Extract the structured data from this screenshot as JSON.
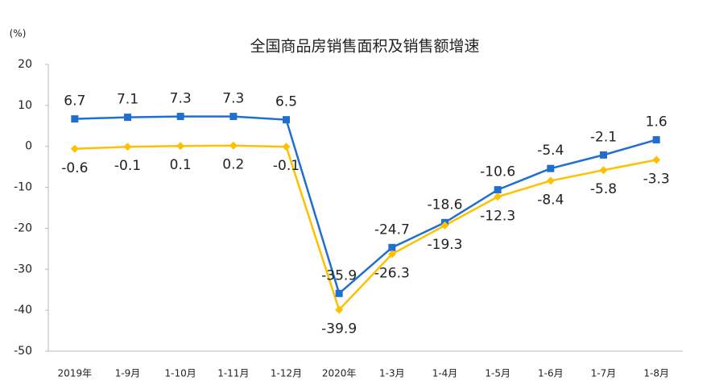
{
  "chart_data": {
    "type": "line",
    "title": "全国商品房销售面积及销售额增速",
    "y_label": "(%)",
    "categories": [
      "2019年",
      "1-9月",
      "1-10月",
      "1-11月",
      "1-12月",
      "2020年",
      "1-3月",
      "1-4月",
      "1-5月",
      "1-6月",
      "1-7月",
      "1-8月"
    ],
    "series": [
      {
        "color": "#1f6fd1",
        "marker": "square",
        "values": [
          6.7,
          7.1,
          7.3,
          7.3,
          6.5,
          -35.9,
          -24.7,
          -18.6,
          -10.6,
          -5.4,
          -2.1,
          1.6
        ]
      },
      {
        "color": "#ffc000",
        "marker": "diamond",
        "values": [
          -0.6,
          -0.1,
          0.1,
          0.2,
          -0.1,
          -39.9,
          -26.3,
          -19.3,
          -12.3,
          -8.4,
          -5.8,
          -3.3
        ]
      }
    ],
    "ylim": [
      -50,
      20
    ],
    "yticks": [
      -50,
      -40,
      -30,
      -20,
      -10,
      0,
      10,
      20
    ],
    "grid": false
  }
}
